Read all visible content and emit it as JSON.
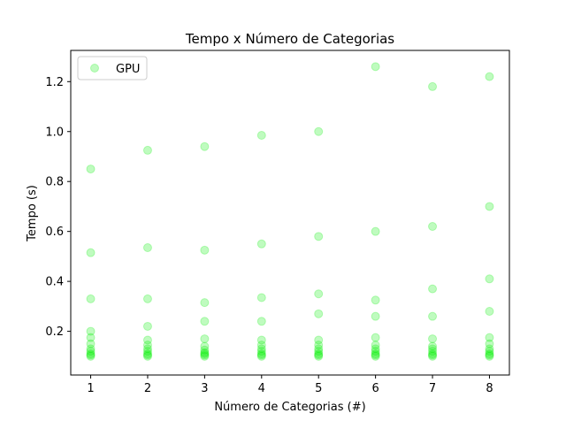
{
  "chart_data": {
    "type": "scatter",
    "title": "Tempo x Número de Categorias",
    "xlabel": "Número de Categorias (#)",
    "ylabel": "Tempo (s)",
    "xlim": [
      0.65,
      8.35
    ],
    "ylim": [
      0.025,
      1.325
    ],
    "xticks": [
      1,
      2,
      3,
      4,
      5,
      6,
      7,
      8
    ],
    "yticks": [
      0.2,
      0.4,
      0.6,
      0.8,
      1.0,
      1.2
    ],
    "ytick_labels": [
      "0.2",
      "0.4",
      "0.6",
      "0.8",
      "1.0",
      "1.2"
    ],
    "grid": false,
    "legend_position": "top-left",
    "series": [
      {
        "name": "GPU",
        "color": "#00ee00",
        "points": [
          [
            1,
            0.85
          ],
          [
            1,
            0.515
          ],
          [
            1,
            0.33
          ],
          [
            1,
            0.2
          ],
          [
            1,
            0.175
          ],
          [
            1,
            0.15
          ],
          [
            1,
            0.13
          ],
          [
            1,
            0.12
          ],
          [
            1,
            0.11
          ],
          [
            1,
            0.105
          ],
          [
            1,
            0.1
          ],
          [
            2,
            0.925
          ],
          [
            2,
            0.535
          ],
          [
            2,
            0.33
          ],
          [
            2,
            0.22
          ],
          [
            2,
            0.165
          ],
          [
            2,
            0.145
          ],
          [
            2,
            0.13
          ],
          [
            2,
            0.12
          ],
          [
            2,
            0.11
          ],
          [
            2,
            0.105
          ],
          [
            2,
            0.1
          ],
          [
            3,
            0.94
          ],
          [
            3,
            0.525
          ],
          [
            3,
            0.315
          ],
          [
            3,
            0.24
          ],
          [
            3,
            0.17
          ],
          [
            3,
            0.14
          ],
          [
            3,
            0.125
          ],
          [
            3,
            0.115
          ],
          [
            3,
            0.11
          ],
          [
            3,
            0.105
          ],
          [
            3,
            0.1
          ],
          [
            4,
            0.985
          ],
          [
            4,
            0.55
          ],
          [
            4,
            0.335
          ],
          [
            4,
            0.24
          ],
          [
            4,
            0.165
          ],
          [
            4,
            0.145
          ],
          [
            4,
            0.13
          ],
          [
            4,
            0.12
          ],
          [
            4,
            0.11
          ],
          [
            4,
            0.105
          ],
          [
            4,
            0.1
          ],
          [
            5,
            1.0
          ],
          [
            5,
            0.58
          ],
          [
            5,
            0.35
          ],
          [
            5,
            0.27
          ],
          [
            5,
            0.165
          ],
          [
            5,
            0.145
          ],
          [
            5,
            0.13
          ],
          [
            5,
            0.12
          ],
          [
            5,
            0.11
          ],
          [
            5,
            0.105
          ],
          [
            5,
            0.1
          ],
          [
            6,
            1.26
          ],
          [
            6,
            0.6
          ],
          [
            6,
            0.325
          ],
          [
            6,
            0.26
          ],
          [
            6,
            0.175
          ],
          [
            6,
            0.145
          ],
          [
            6,
            0.13
          ],
          [
            6,
            0.12
          ],
          [
            6,
            0.11
          ],
          [
            6,
            0.105
          ],
          [
            6,
            0.1
          ],
          [
            7,
            1.18
          ],
          [
            7,
            0.62
          ],
          [
            7,
            0.37
          ],
          [
            7,
            0.26
          ],
          [
            7,
            0.17
          ],
          [
            7,
            0.14
          ],
          [
            7,
            0.13
          ],
          [
            7,
            0.12
          ],
          [
            7,
            0.11
          ],
          [
            7,
            0.105
          ],
          [
            7,
            0.1
          ],
          [
            8,
            1.22
          ],
          [
            8,
            0.7
          ],
          [
            8,
            0.41
          ],
          [
            8,
            0.28
          ],
          [
            8,
            0.175
          ],
          [
            8,
            0.15
          ],
          [
            8,
            0.13
          ],
          [
            8,
            0.12
          ],
          [
            8,
            0.11
          ],
          [
            8,
            0.105
          ],
          [
            8,
            0.1
          ]
        ]
      }
    ]
  }
}
